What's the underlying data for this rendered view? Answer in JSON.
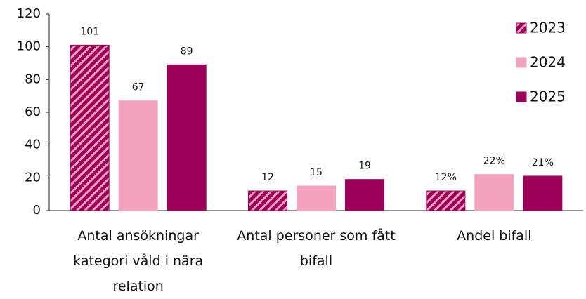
{
  "chart_data": {
    "type": "bar",
    "categories": [
      "Antal ansökningar kategori våld i nära relation",
      "Antal personer som fått bifall",
      "Andel bifall"
    ],
    "series": [
      {
        "name": "2023",
        "color": "#9e0059",
        "hatch": true,
        "values": [
          101,
          12,
          12
        ],
        "value_labels": [
          "101",
          "12",
          "12%"
        ]
      },
      {
        "name": "2024",
        "color": "#f4a3be",
        "hatch": false,
        "values": [
          67,
          15,
          22
        ],
        "value_labels": [
          "67",
          "15",
          "22%"
        ]
      },
      {
        "name": "2025",
        "color": "#9e0059",
        "hatch": false,
        "values": [
          89,
          19,
          21
        ],
        "value_labels": [
          "89",
          "19",
          "21%"
        ]
      }
    ],
    "ylim": [
      0,
      120
    ],
    "yticks": [
      0,
      20,
      40,
      60,
      80,
      100,
      120
    ],
    "grid": false,
    "legend": "right"
  }
}
